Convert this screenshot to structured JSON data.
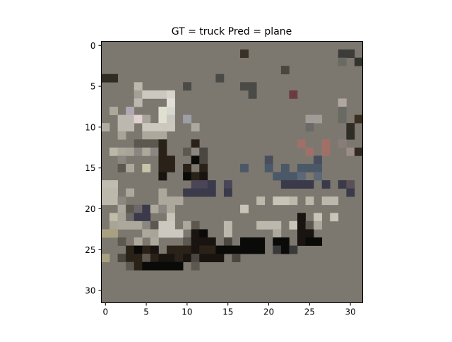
{
  "chart_data": {
    "type": "heatmap",
    "title": "GT = truck Pred = plane",
    "xlabel": "",
    "ylabel": "",
    "image_size": [
      32,
      32
    ],
    "xlim": [
      -0.5,
      31.5
    ],
    "ylim": [
      31.5,
      -0.5
    ],
    "x_ticks": [
      0,
      5,
      10,
      15,
      20,
      25,
      30
    ],
    "y_ticks": [
      0,
      5,
      10,
      15,
      20,
      25,
      30
    ],
    "x_tick_labels": [
      "0",
      "5",
      "10",
      "15",
      "20",
      "25",
      "30"
    ],
    "y_tick_labels": [
      "0",
      "5",
      "10",
      "15",
      "20",
      "25",
      "30"
    ],
    "background_color": "#7c7870",
    "pixels": [
      [
        1,
        17,
        "#3a3228"
      ],
      [
        1,
        29,
        "#3c3c38"
      ],
      [
        1,
        30,
        "#3c3c38"
      ],
      [
        2,
        29,
        "#6a6a64"
      ],
      [
        2,
        31,
        "#34342e"
      ],
      [
        3,
        22,
        "#4a4640"
      ],
      [
        4,
        0,
        "#302c24"
      ],
      [
        4,
        1,
        "#302c24"
      ],
      [
        4,
        14,
        "#4a4a46"
      ],
      [
        5,
        4,
        "#bcb8ac"
      ],
      [
        5,
        10,
        "#4a4a46"
      ],
      [
        5,
        17,
        "#4a4a46"
      ],
      [
        5,
        18,
        "#4a4a46"
      ],
      [
        6,
        4,
        "#a4a098"
      ],
      [
        6,
        5,
        "#ccc8c0"
      ],
      [
        6,
        6,
        "#ccc8c0"
      ],
      [
        6,
        7,
        "#ccc8c0"
      ],
      [
        6,
        8,
        "#d8d4cc"
      ],
      [
        6,
        18,
        "#4a4a46"
      ],
      [
        6,
        23,
        "#6a3c40"
      ],
      [
        7,
        4,
        "#bcb8b0"
      ],
      [
        7,
        8,
        "#e0e0d8"
      ],
      [
        7,
        29,
        "#b0a8a0"
      ],
      [
        8,
        1,
        "#aca89c"
      ],
      [
        8,
        3,
        "#b0a8b4"
      ],
      [
        8,
        7,
        "#e0e0d0"
      ],
      [
        8,
        8,
        "#d8d8d0"
      ],
      [
        8,
        29,
        "#6a6a64"
      ],
      [
        9,
        2,
        "#bcb8b0"
      ],
      [
        9,
        3,
        "#bcb8b0"
      ],
      [
        9,
        4,
        "#e0d0d0"
      ],
      [
        9,
        5,
        "#a8a49c"
      ],
      [
        9,
        7,
        "#e0e0d0"
      ],
      [
        9,
        8,
        "#c8c8c0"
      ],
      [
        9,
        10,
        "#9ca0a4"
      ],
      [
        9,
        25,
        "#a29c98"
      ],
      [
        9,
        26,
        "#a29c98"
      ],
      [
        9,
        29,
        "#6a6a64"
      ],
      [
        9,
        31,
        "#3a2e20"
      ],
      [
        10,
        0,
        "#b0aca0"
      ],
      [
        10,
        2,
        "#bcb8b0"
      ],
      [
        10,
        3,
        "#bcb8b0"
      ],
      [
        10,
        5,
        "#ccc8c0"
      ],
      [
        10,
        6,
        "#ccc8c0"
      ],
      [
        10,
        7,
        "#ccc8c0"
      ],
      [
        10,
        8,
        "#ccc8c0"
      ],
      [
        10,
        11,
        "#aca8a0"
      ],
      [
        10,
        25,
        "#6a6a68"
      ],
      [
        10,
        30,
        "#302c26"
      ],
      [
        11,
        2,
        "#a8a498"
      ],
      [
        11,
        5,
        "#aca89c"
      ],
      [
        11,
        6,
        "#aca89c"
      ],
      [
        11,
        7,
        "#aca89c"
      ],
      [
        11,
        30,
        "#302c26"
      ],
      [
        12,
        4,
        "#5c5850"
      ],
      [
        12,
        5,
        "#5c5850"
      ],
      [
        12,
        6,
        "#5c5850"
      ],
      [
        12,
        7,
        "#2a2218"
      ],
      [
        12,
        11,
        "#2a2218"
      ],
      [
        12,
        24,
        "#a07068"
      ],
      [
        12,
        27,
        "#a07068"
      ],
      [
        12,
        29,
        "#8a7c78"
      ],
      [
        13,
        1,
        "#bcb8a8"
      ],
      [
        13,
        2,
        "#aca89c"
      ],
      [
        13,
        3,
        "#a8a498"
      ],
      [
        13,
        4,
        "#8a8680"
      ],
      [
        13,
        5,
        "#aca89c"
      ],
      [
        13,
        6,
        "#8a8680"
      ],
      [
        13,
        7,
        "#2a2218"
      ],
      [
        13,
        10,
        "#5c5850"
      ],
      [
        13,
        11,
        "#8a8680"
      ],
      [
        13,
        12,
        "#4a4640"
      ],
      [
        13,
        25,
        "#a07068"
      ],
      [
        13,
        27,
        "#a07068"
      ],
      [
        13,
        30,
        "#9c8c88"
      ],
      [
        13,
        31,
        "#302a22"
      ],
      [
        14,
        2,
        "#8a8680"
      ],
      [
        14,
        7,
        "#2a2218"
      ],
      [
        14,
        8,
        "#2a2218"
      ],
      [
        14,
        11,
        "#0a0a08"
      ],
      [
        14,
        12,
        "#4a4640"
      ],
      [
        14,
        20,
        "#4a4e5c"
      ],
      [
        14,
        26,
        "#4a4e5c"
      ],
      [
        15,
        1,
        "#7c7870"
      ],
      [
        15,
        2,
        "#5c5850"
      ],
      [
        15,
        3,
        "#aca89c"
      ],
      [
        15,
        5,
        "#c8c4a8"
      ],
      [
        15,
        7,
        "#2a2218"
      ],
      [
        15,
        8,
        "#2a2218"
      ],
      [
        15,
        10,
        "#2a2218"
      ],
      [
        15,
        12,
        "#2a2218"
      ],
      [
        15,
        17,
        "#4a5868"
      ],
      [
        15,
        20,
        "#4a5868"
      ],
      [
        15,
        22,
        "#4a5868"
      ],
      [
        15,
        24,
        "#4a5868"
      ],
      [
        15,
        25,
        "#4a5868"
      ],
      [
        15,
        26,
        "#4a5868"
      ],
      [
        16,
        7,
        "#1a1410"
      ],
      [
        16,
        10,
        "#0a0a08"
      ],
      [
        16,
        11,
        "#2a2218"
      ],
      [
        16,
        12,
        "#1a1410"
      ],
      [
        16,
        21,
        "#4a5868"
      ],
      [
        16,
        22,
        "#4a5868"
      ],
      [
        16,
        23,
        "#4a5868"
      ],
      [
        16,
        24,
        "#5c6878"
      ],
      [
        16,
        26,
        "#5c6878"
      ],
      [
        17,
        0,
        "#c0bcb0"
      ],
      [
        17,
        1,
        "#c0bcb0"
      ],
      [
        17,
        11,
        "#4a4658"
      ],
      [
        17,
        12,
        "#4a4658"
      ],
      [
        17,
        13,
        "#3a3a4a"
      ],
      [
        17,
        15,
        "#4a4658"
      ],
      [
        17,
        22,
        "#3a3a4a"
      ],
      [
        17,
        23,
        "#3a3a4a"
      ],
      [
        17,
        24,
        "#3a3a4a"
      ],
      [
        17,
        25,
        "#3a3a4a"
      ],
      [
        17,
        27,
        "#3a3a4a"
      ],
      [
        17,
        29,
        "#3a3a4a"
      ],
      [
        17,
        30,
        "#5a5058"
      ],
      [
        18,
        0,
        "#bcb8ac"
      ],
      [
        18,
        1,
        "#bcb8ac"
      ],
      [
        18,
        3,
        "#aca89c"
      ],
      [
        18,
        7,
        "#aca89c"
      ],
      [
        18,
        10,
        "#3a3a4a"
      ],
      [
        18,
        11,
        "#3a3a4a"
      ],
      [
        18,
        12,
        "#3a3a4a"
      ],
      [
        18,
        13,
        "#3a3a4a"
      ],
      [
        18,
        15,
        "#3a3a4a"
      ],
      [
        18,
        30,
        "#3a3a4a"
      ],
      [
        19,
        0,
        "#bcb8ac"
      ],
      [
        19,
        1,
        "#bcb8ac"
      ],
      [
        19,
        2,
        "#8a8680"
      ],
      [
        19,
        7,
        "#aca89c"
      ],
      [
        19,
        8,
        "#aca89c"
      ],
      [
        19,
        9,
        "#aca89c"
      ],
      [
        19,
        19,
        "#bcb8ac"
      ],
      [
        19,
        21,
        "#c8c4b8"
      ],
      [
        19,
        22,
        "#c8c4b8"
      ],
      [
        19,
        23,
        "#bcb8ac"
      ],
      [
        19,
        25,
        "#bcb8ac"
      ],
      [
        19,
        27,
        "#bcb8ac"
      ],
      [
        19,
        28,
        "#bcb8ac"
      ],
      [
        20,
        2,
        "#aca89c"
      ],
      [
        20,
        3,
        "#5c5850"
      ],
      [
        20,
        4,
        "#6c6868"
      ],
      [
        20,
        5,
        "#3a3a4a"
      ],
      [
        20,
        6,
        "#aca89c"
      ],
      [
        20,
        7,
        "#8a8680"
      ],
      [
        20,
        8,
        "#aca89c"
      ],
      [
        20,
        17,
        "#c8c4b8"
      ],
      [
        21,
        1,
        "#c0bca8"
      ],
      [
        21,
        2,
        "#a8a498"
      ],
      [
        21,
        3,
        "#6c6868"
      ],
      [
        21,
        4,
        "#3a3a4a"
      ],
      [
        21,
        5,
        "#3a3a4a"
      ],
      [
        21,
        8,
        "#c8c4b8"
      ],
      [
        21,
        24,
        "#1a1410"
      ],
      [
        21,
        26,
        "#c8c4b8"
      ],
      [
        21,
        28,
        "#c8c4b8"
      ],
      [
        22,
        1,
        "#a8a498"
      ],
      [
        22,
        2,
        "#aca89c"
      ],
      [
        22,
        3,
        "#aca89c"
      ],
      [
        22,
        4,
        "#aca89c"
      ],
      [
        22,
        5,
        "#8a8680"
      ],
      [
        22,
        6,
        "#5c5850"
      ],
      [
        22,
        7,
        "#ccc8c0"
      ],
      [
        22,
        8,
        "#ccc8c0"
      ],
      [
        22,
        10,
        "#aca89c"
      ],
      [
        22,
        11,
        "#5c5850"
      ],
      [
        22,
        15,
        "#bcb8ac"
      ],
      [
        22,
        19,
        "#bcb8ac"
      ],
      [
        22,
        20,
        "#bcb8ac"
      ],
      [
        22,
        21,
        "#bcb8ac"
      ],
      [
        22,
        23,
        "#c8c4b8"
      ],
      [
        22,
        24,
        "#1a1410"
      ],
      [
        22,
        25,
        "#5c5850"
      ],
      [
        22,
        26,
        "#aca89c"
      ],
      [
        23,
        0,
        "#a8a080"
      ],
      [
        23,
        1,
        "#a8a080"
      ],
      [
        23,
        5,
        "#aca89c"
      ],
      [
        23,
        6,
        "#a8a498"
      ],
      [
        23,
        7,
        "#ccc8c0"
      ],
      [
        23,
        8,
        "#ccc8c0"
      ],
      [
        23,
        9,
        "#ccc8c0"
      ],
      [
        23,
        11,
        "#1a1410"
      ],
      [
        23,
        12,
        "#0a0a08"
      ],
      [
        23,
        15,
        "#bcb8ac"
      ],
      [
        23,
        21,
        "#aca89c"
      ],
      [
        23,
        24,
        "#1a1410"
      ],
      [
        23,
        25,
        "#1a1410"
      ],
      [
        24,
        2,
        "#5c5850"
      ],
      [
        24,
        4,
        "#aca89c"
      ],
      [
        24,
        6,
        "#aca89c"
      ],
      [
        24,
        10,
        "#5c5850"
      ],
      [
        24,
        11,
        "#1a1410"
      ],
      [
        24,
        12,
        "#1a1410"
      ],
      [
        24,
        13,
        "#1a1410"
      ],
      [
        24,
        15,
        "#4a4640"
      ],
      [
        24,
        17,
        "#0a0a08"
      ],
      [
        24,
        18,
        "#0a0a08"
      ],
      [
        24,
        19,
        "#0a0a08"
      ],
      [
        24,
        21,
        "#0a0a08"
      ],
      [
        24,
        22,
        "#0a0a08"
      ],
      [
        24,
        24,
        "#1a1410"
      ],
      [
        24,
        25,
        "#0a0a08"
      ],
      [
        24,
        26,
        "#0a0a08"
      ],
      [
        25,
        3,
        "#2a2218"
      ],
      [
        25,
        4,
        "#0a0a08"
      ],
      [
        25,
        5,
        "#2a2218"
      ],
      [
        25,
        6,
        "#1a1410"
      ],
      [
        25,
        8,
        "#2a2218"
      ],
      [
        25,
        9,
        "#2a2218"
      ],
      [
        25,
        10,
        "#2a2218"
      ],
      [
        25,
        11,
        "#1a1410"
      ],
      [
        25,
        12,
        "#2a2218"
      ],
      [
        25,
        13,
        "#2a2218"
      ],
      [
        25,
        14,
        "#0a0a08"
      ],
      [
        25,
        15,
        "#0a0a08"
      ],
      [
        25,
        16,
        "#0a0a08"
      ],
      [
        25,
        17,
        "#0a0a08"
      ],
      [
        25,
        18,
        "#0a0a08"
      ],
      [
        25,
        19,
        "#0a0a08"
      ],
      [
        25,
        21,
        "#3a3a3a"
      ],
      [
        25,
        22,
        "#0a0a08"
      ],
      [
        25,
        23,
        "#3a3a3a"
      ],
      [
        26,
        0,
        "#a8a080"
      ],
      [
        26,
        2,
        "#4a4640"
      ],
      [
        26,
        3,
        "#2a2218"
      ],
      [
        26,
        4,
        "#2a2218"
      ],
      [
        26,
        5,
        "#5c5850"
      ],
      [
        26,
        6,
        "#2a2218"
      ],
      [
        26,
        7,
        "#1a1410"
      ],
      [
        26,
        8,
        "#1a1410"
      ],
      [
        26,
        9,
        "#2a2218"
      ],
      [
        26,
        10,
        "#1a1410"
      ],
      [
        26,
        11,
        "#4a4640"
      ],
      [
        26,
        12,
        "#1a1410"
      ],
      [
        26,
        13,
        "#1a1410"
      ],
      [
        26,
        14,
        "#1a1410"
      ],
      [
        26,
        16,
        "#4a4640"
      ],
      [
        27,
        3,
        "#5c5850"
      ],
      [
        27,
        4,
        "#2a2218"
      ],
      [
        27,
        5,
        "#0a0a08"
      ],
      [
        27,
        6,
        "#0a0a08"
      ],
      [
        27,
        7,
        "#0a0a08"
      ],
      [
        27,
        8,
        "#0a0a08"
      ],
      [
        27,
        9,
        "#0a0a08"
      ],
      [
        27,
        11,
        "#5c5850"
      ]
    ]
  }
}
